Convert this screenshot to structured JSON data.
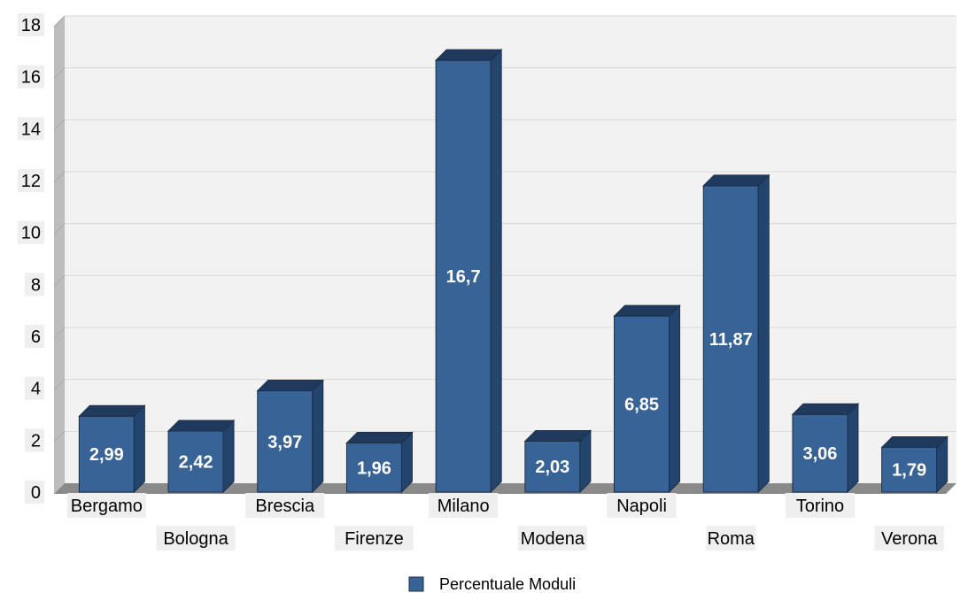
{
  "chart_data": {
    "type": "bar",
    "categories": [
      "Bergamo",
      "Bologna",
      "Brescia",
      "Firenze",
      "Milano",
      "Modena",
      "Napoli",
      "Roma",
      "Torino",
      "Verona"
    ],
    "series": [
      {
        "name": "Percentuale Moduli",
        "values": [
          2.99,
          2.42,
          3.97,
          1.96,
          16.7,
          2.03,
          6.85,
          11.87,
          3.06,
          1.79
        ],
        "data_labels": [
          "2,99",
          "2,42",
          "3,97",
          "1,96",
          "16,7",
          "2,03",
          "6,85",
          "11,87",
          "3,06",
          "1,79"
        ]
      }
    ],
    "ylim": [
      0,
      18
    ],
    "yticks": [
      0,
      2,
      4,
      6,
      8,
      10,
      12,
      14,
      16,
      18
    ],
    "ytick_labels": [
      "0",
      "2",
      "4",
      "6",
      "8",
      "10",
      "12",
      "14",
      "16",
      "18"
    ],
    "grid": true,
    "legend": "bottom-center",
    "style": "3d",
    "colors": {
      "bar_front": "#386396",
      "bar_side": "#23456d",
      "bar_top": "#1f3a5d",
      "plot_background": "#f2f2f2",
      "wall_shade": "#bdbdbd",
      "floor_shade": "#8a8a8a",
      "gridline": "#d9d9d9",
      "label_background": "#efefef"
    }
  }
}
